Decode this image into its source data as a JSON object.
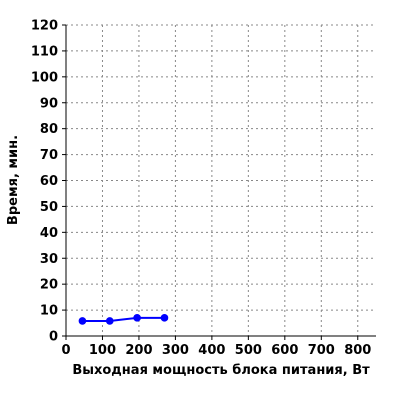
{
  "chart_data": {
    "type": "line",
    "title": "",
    "xlabel": "Выходная мощность блока питания, Вт",
    "ylabel": "Время, мин.",
    "xlim": [
      0,
      850
    ],
    "ylim": [
      0,
      120
    ],
    "x_ticks": [
      0,
      100,
      200,
      300,
      400,
      500,
      600,
      700,
      800
    ],
    "y_ticks": [
      0,
      10,
      20,
      30,
      40,
      50,
      60,
      70,
      80,
      90,
      100,
      110,
      120
    ],
    "grid": true,
    "series": [
      {
        "color": "#0000ff",
        "x": [
          45,
          120,
          195,
          270
        ],
        "y": [
          5.8,
          5.8,
          7,
          7
        ]
      }
    ]
  }
}
